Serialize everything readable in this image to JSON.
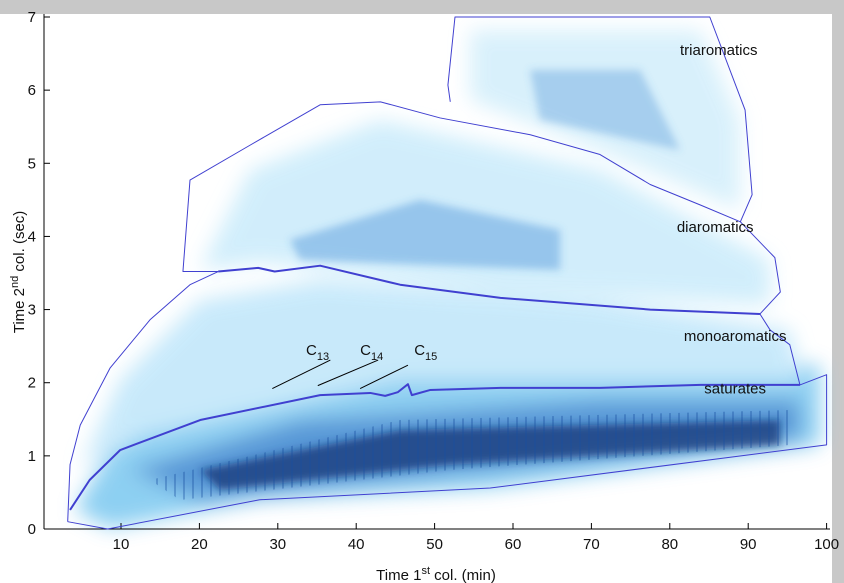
{
  "chart_data": {
    "type": "region-map",
    "xlabel": [
      "Time 1",
      "st",
      " col. (min)"
    ],
    "ylabel": [
      "Time 2",
      "nd",
      " col. (sec)"
    ],
    "xlim": [
      0,
      100
    ],
    "ylim": [
      0,
      7
    ],
    "xticks": [
      10,
      20,
      30,
      40,
      50,
      60,
      70,
      80,
      90,
      100
    ],
    "yticks": [
      0,
      1,
      2,
      3,
      4,
      5,
      6,
      7
    ],
    "outline_color": "#4040d0",
    "regions": [
      {
        "x": [
          3.2,
          3.5,
          4.8,
          8.6,
          13.7,
          18.8,
          22.4
        ],
        "y": [
          0.1,
          0.88,
          1.42,
          2.2,
          2.86,
          3.34,
          3.52
        ],
        "width": 1
      },
      {
        "x": [
          91.5,
          92.8,
          95.3,
          96.6,
          100,
          100,
          57.1,
          27.7,
          8.3,
          3.2
        ],
        "y": [
          2.94,
          2.72,
          2.52,
          1.97,
          2.11,
          1.15,
          0.56,
          0.4,
          0,
          0.1
        ],
        "width": 1
      },
      {
        "x": [
          22.4,
          27.5,
          29.6,
          35.4,
          45.6,
          58.4,
          77.5,
          91.5
        ],
        "y": [
          3.52,
          3.57,
          3.52,
          3.6,
          3.34,
          3.16,
          3.0,
          2.94
        ],
        "width": 2
      },
      {
        "x": [
          22.4,
          17.9,
          18.8,
          26.5,
          35.4,
          43.1,
          50.7,
          62.2,
          71.1,
          77.5,
          83.9,
          89,
          93.4,
          94.1,
          91.5
        ],
        "y": [
          3.52,
          3.52,
          4.77,
          5.25,
          5.8,
          5.84,
          5.62,
          5.39,
          5.12,
          4.71,
          4.43,
          4.2,
          3.71,
          3.24,
          2.94
        ],
        "width": 1
      },
      {
        "x": [
          52,
          51.7,
          52.6,
          85.1,
          89.6,
          90.5,
          89
        ],
        "y": [
          5.84,
          6.07,
          7,
          7,
          5.73,
          4.57,
          4.2
        ],
        "width": 1
      },
      {
        "x": [
          3.5,
          6,
          9.9,
          20.1,
          35.4,
          41.8,
          43.7,
          45.3,
          46.6,
          47.1,
          49.4,
          58.4,
          71.1,
          83.9,
          96.6
        ],
        "y": [
          0.26,
          0.67,
          1.08,
          1.49,
          1.83,
          1.86,
          1.82,
          1.87,
          1.98,
          1.83,
          1.9,
          1.93,
          1.93,
          1.97,
          1.97
        ],
        "width": 2
      }
    ],
    "region_labels": [
      {
        "text": "triaromatics",
        "x": 81.3,
        "y": 6.48
      },
      {
        "text": "diaromatics",
        "x": 80.9,
        "y": 4.06
      },
      {
        "text": "monoaromatics",
        "x": 81.8,
        "y": 2.57
      },
      {
        "text": "saturates",
        "x": 84.4,
        "y": 1.85
      }
    ],
    "carbon_markers": [
      {
        "text": "C",
        "sub": "13",
        "x": [
          29.3,
          36.7
        ],
        "y": [
          1.92,
          2.31
        ],
        "label_x": 33.6,
        "label_y": 2.38
      },
      {
        "text": "C",
        "sub": "14",
        "x": [
          35.1,
          42.8
        ],
        "y": [
          1.96,
          2.31
        ],
        "label_x": 40.5,
        "label_y": 2.38
      },
      {
        "text": "C",
        "sub": "15",
        "x": [
          40.5,
          46.6
        ],
        "y": [
          1.92,
          2.24
        ],
        "label_x": 47.4,
        "label_y": 2.38
      }
    ]
  }
}
